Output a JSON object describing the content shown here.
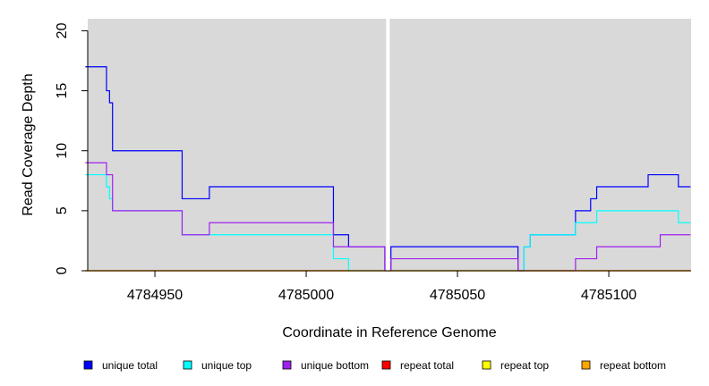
{
  "chart_data": {
    "type": "line",
    "step": true,
    "xlabel": "Coordinate in Reference Genome",
    "ylabel": "Read Coverage Depth",
    "xlim": [
      4784927,
      4785127
    ],
    "ylim": [
      0,
      21
    ],
    "x_ticks": [
      4784950,
      4785000,
      4785050,
      4785100
    ],
    "y_ticks": [
      0,
      5,
      10,
      15,
      20
    ],
    "background_color": "#d9d9d9",
    "gap_marker_x": 4785027,
    "legend_position": "bottom",
    "series": [
      {
        "name": "unique total",
        "color": "#0000ff",
        "steps": [
          [
            4784927,
            17
          ],
          [
            4784934,
            15
          ],
          [
            4784935,
            14
          ],
          [
            4784936,
            10
          ],
          [
            4784959,
            6
          ],
          [
            4784968,
            7
          ],
          [
            4785009,
            3
          ],
          [
            4785014,
            2
          ],
          [
            4785026,
            0
          ],
          [
            4785028,
            2
          ],
          [
            4785070,
            0
          ],
          [
            4785072,
            2
          ],
          [
            4785074,
            3
          ],
          [
            4785089,
            5
          ],
          [
            4785094,
            6
          ],
          [
            4785096,
            7
          ],
          [
            4785113,
            8
          ],
          [
            4785123,
            7
          ]
        ],
        "end": 4785127
      },
      {
        "name": "unique top",
        "color": "#00ffff",
        "steps": [
          [
            4784927,
            8
          ],
          [
            4784934,
            7
          ],
          [
            4784935,
            6
          ],
          [
            4784936,
            5
          ],
          [
            4784959,
            3
          ],
          [
            4785009,
            1
          ],
          [
            4785014,
            0
          ],
          [
            4785072,
            2
          ],
          [
            4785074,
            3
          ],
          [
            4785089,
            4
          ],
          [
            4785096,
            5
          ],
          [
            4785123,
            4
          ]
        ],
        "end": 4785127
      },
      {
        "name": "unique bottom",
        "color": "#a020f0",
        "steps": [
          [
            4784927,
            9
          ],
          [
            4784934,
            8
          ],
          [
            4784936,
            5
          ],
          [
            4784959,
            3
          ],
          [
            4784968,
            4
          ],
          [
            4785009,
            2
          ],
          [
            4785014,
            2
          ],
          [
            4785026,
            0
          ],
          [
            4785028,
            1
          ],
          [
            4785070,
            0
          ],
          [
            4785089,
            1
          ],
          [
            4785096,
            2
          ],
          [
            4785113,
            2
          ],
          [
            4785117,
            3
          ]
        ],
        "end": 4785127
      },
      {
        "name": "repeat total",
        "color": "#ff0000",
        "steps": [
          [
            4784927,
            0
          ]
        ],
        "end": 4785127
      },
      {
        "name": "repeat top",
        "color": "#ffff00",
        "steps": [
          [
            4784927,
            0
          ]
        ],
        "end": 4785127
      },
      {
        "name": "repeat bottom",
        "color": "#ffa500",
        "steps": [
          [
            4784927,
            0
          ]
        ],
        "end": 4785127
      }
    ]
  }
}
